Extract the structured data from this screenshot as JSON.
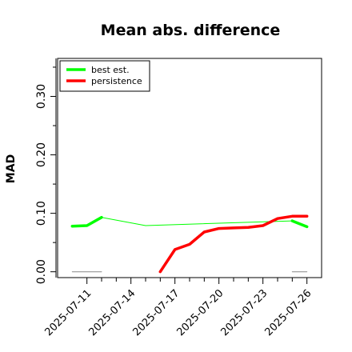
{
  "chart_data": {
    "type": "line",
    "title": "Mean abs. difference",
    "xlabel": "",
    "ylabel": "MAD",
    "x_range": [
      "2025-07-09",
      "2025-07-27"
    ],
    "ylim": [
      -0.01,
      0.365
    ],
    "yticks_labeled": [
      0.0,
      0.1,
      0.2,
      0.3
    ],
    "yticks_labels": [
      "0.00",
      "0.10",
      "0.20",
      "0.30"
    ],
    "yticks_minor": [
      0.05,
      0.15,
      0.25,
      0.35
    ],
    "xticks": [
      "2025-07-11",
      "2025-07-14",
      "2025-07-17",
      "2025-07-20",
      "2025-07-23",
      "2025-07-26"
    ],
    "xticks_minor": [
      "2025-07-12",
      "2025-07-13",
      "2025-07-15",
      "2025-07-16",
      "2025-07-18",
      "2025-07-19",
      "2025-07-21",
      "2025-07-22",
      "2025-07-24",
      "2025-07-25"
    ],
    "xtick_labels": [
      "2025-07-11",
      "2025-07-14",
      "2025-07-17",
      "2025-07-20",
      "2025-07-23",
      "2025-07-26"
    ],
    "legend": {
      "position": "top-left"
    },
    "series": [
      {
        "name": "best est.",
        "color": "#00ff00",
        "segments": [
          {
            "x": [
              "2025-07-10",
              "2025-07-11",
              "2025-07-12"
            ],
            "y": [
              0.078,
              0.079,
              0.093
            ],
            "style": "thick"
          },
          {
            "x": [
              "2025-07-12",
              "2025-07-15",
              "2025-07-25"
            ],
            "y": [
              0.093,
              0.079,
              0.087
            ],
            "style": "thin"
          },
          {
            "x": [
              "2025-07-25",
              "2025-07-26"
            ],
            "y": [
              0.087,
              0.077
            ],
            "style": "thick"
          }
        ]
      },
      {
        "name": "persistence",
        "color": "#ff0000",
        "segments": [
          {
            "x": [
              "2025-07-16",
              "2025-07-17",
              "2025-07-18",
              "2025-07-19",
              "2025-07-20",
              "2025-07-21",
              "2025-07-22",
              "2025-07-23",
              "2025-07-24",
              "2025-07-25",
              "2025-07-26"
            ],
            "y": [
              0.0,
              0.038,
              0.047,
              0.068,
              0.074,
              0.075,
              0.076,
              0.079,
              0.091,
              0.095,
              0.095
            ],
            "style": "thick"
          }
        ]
      },
      {
        "name": "",
        "color": "#888888",
        "segments": [
          {
            "x": [
              "2025-07-10",
              "2025-07-12"
            ],
            "y": [
              0.0,
              0.0
            ],
            "style": "thin"
          },
          {
            "x": [
              "2025-07-25",
              "2025-07-26"
            ],
            "y": [
              0.0,
              0.0
            ],
            "style": "thin"
          }
        ]
      }
    ]
  }
}
